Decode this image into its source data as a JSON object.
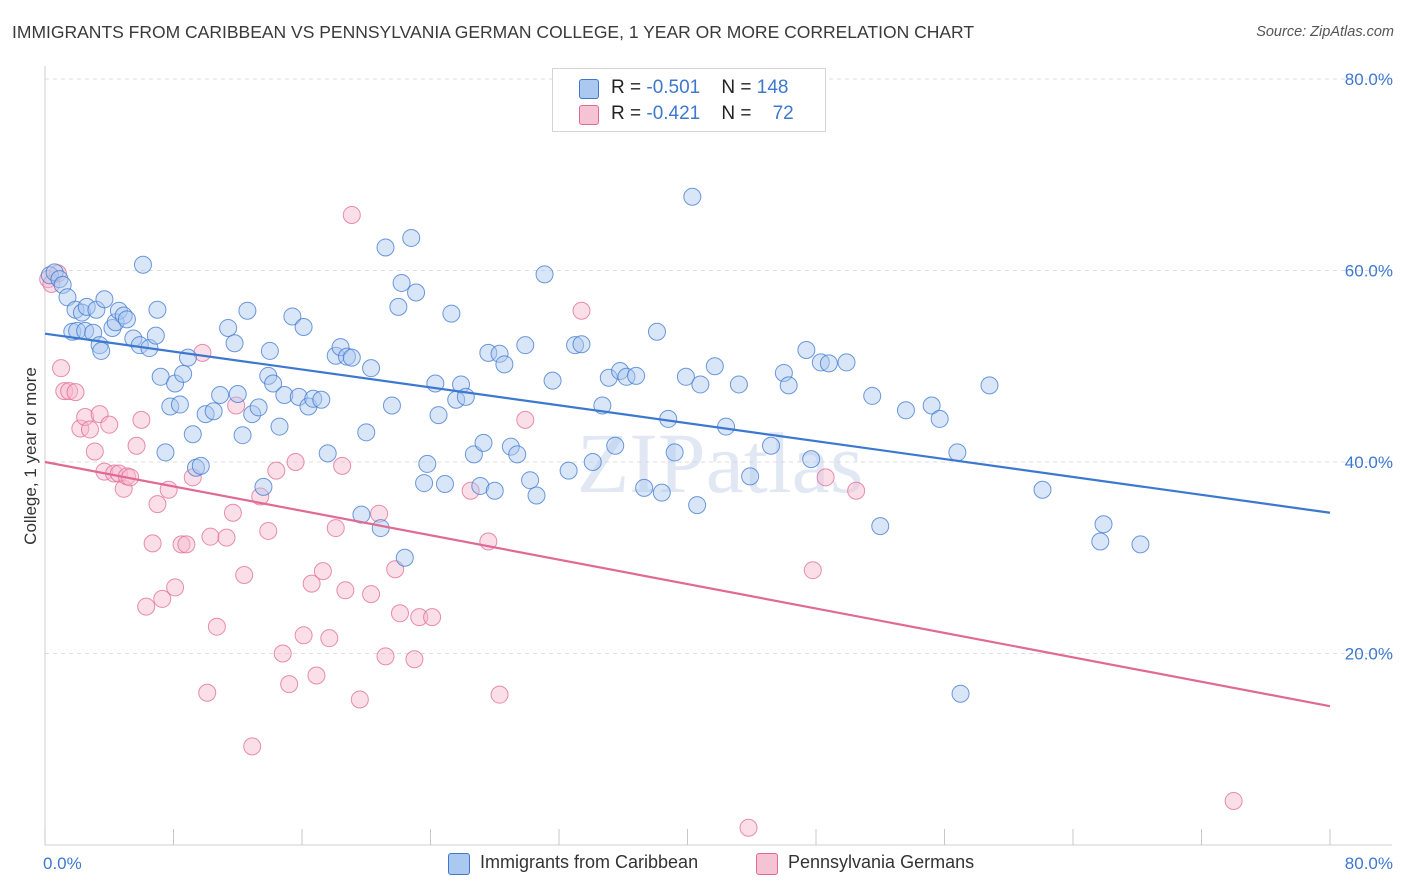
{
  "title": "IMMIGRANTS FROM CARIBBEAN VS PENNSYLVANIA GERMAN COLLEGE, 1 YEAR OR MORE CORRELATION CHART",
  "source": "Source: ZipAtlas.com",
  "watermark": "ZIPatlas",
  "colors": {
    "blue": "#3d78d0",
    "blue_fill": "#aac8f0",
    "pink": "#e06a94",
    "pink_fill": "#f6b8cc",
    "grid": "#dcdcdc",
    "axis_text": "#3d78d0"
  },
  "legend_top": [
    {
      "r_label": "R = ",
      "r_value": "-0.501",
      "n_label": "N = ",
      "n_value": "148"
    },
    {
      "r_label": "R = ",
      "r_value": "-0.421",
      "n_label": "N = ",
      "n_value": "72"
    }
  ],
  "chart_data": {
    "type": "scatter",
    "title": "IMMIGRANTS FROM CARIBBEAN VS PENNSYLVANIA GERMAN COLLEGE, 1 YEAR OR MORE CORRELATION CHART",
    "xlabel": "",
    "ylabel": "College, 1 year or more",
    "xlim": [
      0,
      80
    ],
    "ylim": [
      0,
      80
    ],
    "x_tick_labels": [
      "0.0%",
      "80.0%"
    ],
    "y_tick_labels": [
      "20.0%",
      "40.0%",
      "60.0%",
      "80.0%"
    ],
    "y_ticks": [
      20,
      40,
      60,
      80
    ],
    "grid": true,
    "legend_position": "bottom-center",
    "series": [
      {
        "name": "Immigrants from Caribbean",
        "color": "#3d78d0",
        "trend": {
          "x": [
            0,
            80
          ],
          "y": [
            53.4,
            34.7
          ]
        },
        "points": [
          [
            0.3,
            59.5
          ],
          [
            0.6,
            59.8
          ],
          [
            0.9,
            59.1
          ],
          [
            1.1,
            58.5
          ],
          [
            1.4,
            57.2
          ],
          [
            1.7,
            53.6
          ],
          [
            1.9,
            55.9
          ],
          [
            2.0,
            53.7
          ],
          [
            2.3,
            55.6
          ],
          [
            2.5,
            53.7
          ],
          [
            2.6,
            56.2
          ],
          [
            3.0,
            53.5
          ],
          [
            3.2,
            55.9
          ],
          [
            3.4,
            52.2
          ],
          [
            3.5,
            51.6
          ],
          [
            3.7,
            57.0
          ],
          [
            4.2,
            54.0
          ],
          [
            4.4,
            54.6
          ],
          [
            4.6,
            55.8
          ],
          [
            4.9,
            55.3
          ],
          [
            5.1,
            54.9
          ],
          [
            5.5,
            52.9
          ],
          [
            5.9,
            52.2
          ],
          [
            6.1,
            60.6
          ],
          [
            6.5,
            51.9
          ],
          [
            6.9,
            53.2
          ],
          [
            7.0,
            55.9
          ],
          [
            7.2,
            48.9
          ],
          [
            7.5,
            41.0
          ],
          [
            7.8,
            45.8
          ],
          [
            8.1,
            48.2
          ],
          [
            8.4,
            46.0
          ],
          [
            8.6,
            49.2
          ],
          [
            8.9,
            50.9
          ],
          [
            9.2,
            42.9
          ],
          [
            9.4,
            39.4
          ],
          [
            9.7,
            39.6
          ],
          [
            10.0,
            45.0
          ],
          [
            10.5,
            45.3
          ],
          [
            10.9,
            47.0
          ],
          [
            11.4,
            54.0
          ],
          [
            11.8,
            52.4
          ],
          [
            12.0,
            47.1
          ],
          [
            12.3,
            42.8
          ],
          [
            12.6,
            55.8
          ],
          [
            12.9,
            45.0
          ],
          [
            13.3,
            45.7
          ],
          [
            13.6,
            37.4
          ],
          [
            13.9,
            49.0
          ],
          [
            14.0,
            51.6
          ],
          [
            14.2,
            48.2
          ],
          [
            14.6,
            43.7
          ],
          [
            14.9,
            47.0
          ],
          [
            15.4,
            55.2
          ],
          [
            15.8,
            46.8
          ],
          [
            16.1,
            54.1
          ],
          [
            16.4,
            45.8
          ],
          [
            16.7,
            46.6
          ],
          [
            17.2,
            46.5
          ],
          [
            17.6,
            40.9
          ],
          [
            18.1,
            51.1
          ],
          [
            18.4,
            52.0
          ],
          [
            18.8,
            51.0
          ],
          [
            19.1,
            50.9
          ],
          [
            19.7,
            34.5
          ],
          [
            20.0,
            43.1
          ],
          [
            20.3,
            49.8
          ],
          [
            20.9,
            33.1
          ],
          [
            21.2,
            62.4
          ],
          [
            21.6,
            45.9
          ],
          [
            22.0,
            56.2
          ],
          [
            22.2,
            58.7
          ],
          [
            22.4,
            30.0
          ],
          [
            22.8,
            63.4
          ],
          [
            23.1,
            57.7
          ],
          [
            23.6,
            37.8
          ],
          [
            23.8,
            39.8
          ],
          [
            24.3,
            48.2
          ],
          [
            24.5,
            44.9
          ],
          [
            24.9,
            37.7
          ],
          [
            25.3,
            55.5
          ],
          [
            25.6,
            46.5
          ],
          [
            25.9,
            48.1
          ],
          [
            26.2,
            46.8
          ],
          [
            26.7,
            40.8
          ],
          [
            27.1,
            37.5
          ],
          [
            27.3,
            42.0
          ],
          [
            27.6,
            51.4
          ],
          [
            28.0,
            37.0
          ],
          [
            28.3,
            51.3
          ],
          [
            28.6,
            50.2
          ],
          [
            29.0,
            41.6
          ],
          [
            29.4,
            40.8
          ],
          [
            29.9,
            52.2
          ],
          [
            30.2,
            38.1
          ],
          [
            30.6,
            36.5
          ],
          [
            31.1,
            59.6
          ],
          [
            31.6,
            48.5
          ],
          [
            32.6,
            39.1
          ],
          [
            33.0,
            52.2
          ],
          [
            33.4,
            52.3
          ],
          [
            34.1,
            40.0
          ],
          [
            34.7,
            45.9
          ],
          [
            35.1,
            48.8
          ],
          [
            35.5,
            41.7
          ],
          [
            35.8,
            49.5
          ],
          [
            36.2,
            48.9
          ],
          [
            36.8,
            49.0
          ],
          [
            37.3,
            37.3
          ],
          [
            38.1,
            53.6
          ],
          [
            38.4,
            36.8
          ],
          [
            38.8,
            44.5
          ],
          [
            39.2,
            41.0
          ],
          [
            39.9,
            48.9
          ],
          [
            40.3,
            67.7
          ],
          [
            40.6,
            35.5
          ],
          [
            40.8,
            48.1
          ],
          [
            41.7,
            50.0
          ],
          [
            42.4,
            43.7
          ],
          [
            43.2,
            48.1
          ],
          [
            43.9,
            38.5
          ],
          [
            45.2,
            41.7
          ],
          [
            46.0,
            49.3
          ],
          [
            46.3,
            48.0
          ],
          [
            47.4,
            51.7
          ],
          [
            47.7,
            40.3
          ],
          [
            48.3,
            50.4
          ],
          [
            48.8,
            50.3
          ],
          [
            49.9,
            50.4
          ],
          [
            51.5,
            46.9
          ],
          [
            52.0,
            33.3
          ],
          [
            53.6,
            45.4
          ],
          [
            55.2,
            45.9
          ],
          [
            55.7,
            44.5
          ],
          [
            56.8,
            41.0
          ],
          [
            57.0,
            15.8
          ],
          [
            58.8,
            48.0
          ],
          [
            62.1,
            37.1
          ],
          [
            65.7,
            31.7
          ],
          [
            65.9,
            33.5
          ],
          [
            68.2,
            31.4
          ]
        ]
      },
      {
        "name": "Pennsylvania Germans",
        "color": "#e06a94",
        "trend": {
          "x": [
            0,
            80
          ],
          "y": [
            40.0,
            14.5
          ]
        },
        "points": [
          [
            0.2,
            59.1
          ],
          [
            0.4,
            58.6
          ],
          [
            0.8,
            59.7
          ],
          [
            1.0,
            49.8
          ],
          [
            1.2,
            47.4
          ],
          [
            1.5,
            47.4
          ],
          [
            1.9,
            47.3
          ],
          [
            2.2,
            43.5
          ],
          [
            2.5,
            44.7
          ],
          [
            2.8,
            43.4
          ],
          [
            3.1,
            41.1
          ],
          [
            3.4,
            45.0
          ],
          [
            3.7,
            39.0
          ],
          [
            4.0,
            43.9
          ],
          [
            4.3,
            38.8
          ],
          [
            4.6,
            38.8
          ],
          [
            4.9,
            37.2
          ],
          [
            5.1,
            38.5
          ],
          [
            5.3,
            38.4
          ],
          [
            5.7,
            41.7
          ],
          [
            6.0,
            44.4
          ],
          [
            6.3,
            24.9
          ],
          [
            6.7,
            31.5
          ],
          [
            7.0,
            35.6
          ],
          [
            7.3,
            25.7
          ],
          [
            7.7,
            37.1
          ],
          [
            8.1,
            26.9
          ],
          [
            8.5,
            31.4
          ],
          [
            8.8,
            31.4
          ],
          [
            9.2,
            38.4
          ],
          [
            9.8,
            51.4
          ],
          [
            10.1,
            15.9
          ],
          [
            10.3,
            32.2
          ],
          [
            10.7,
            22.8
          ],
          [
            11.3,
            32.1
          ],
          [
            11.7,
            34.7
          ],
          [
            11.9,
            45.9
          ],
          [
            12.4,
            28.2
          ],
          [
            12.9,
            10.3
          ],
          [
            13.4,
            36.4
          ],
          [
            13.9,
            32.8
          ],
          [
            14.4,
            39.1
          ],
          [
            14.8,
            20.0
          ],
          [
            15.2,
            16.8
          ],
          [
            15.6,
            40.0
          ],
          [
            16.1,
            21.9
          ],
          [
            16.6,
            27.3
          ],
          [
            16.9,
            17.7
          ],
          [
            17.3,
            28.6
          ],
          [
            17.7,
            21.6
          ],
          [
            18.1,
            33.1
          ],
          [
            18.5,
            39.6
          ],
          [
            18.7,
            26.6
          ],
          [
            19.1,
            65.8
          ],
          [
            19.6,
            15.2
          ],
          [
            20.3,
            26.2
          ],
          [
            20.8,
            34.6
          ],
          [
            21.2,
            19.7
          ],
          [
            21.8,
            28.8
          ],
          [
            22.1,
            24.2
          ],
          [
            23.0,
            19.4
          ],
          [
            23.3,
            23.8
          ],
          [
            24.1,
            23.8
          ],
          [
            26.5,
            37.0
          ],
          [
            27.6,
            31.7
          ],
          [
            28.3,
            15.7
          ],
          [
            29.9,
            44.4
          ],
          [
            33.4,
            55.8
          ],
          [
            43.8,
            1.8
          ],
          [
            47.8,
            28.7
          ],
          [
            48.6,
            38.4
          ],
          [
            50.5,
            37.0
          ],
          [
            74.0,
            4.6
          ]
        ]
      }
    ]
  },
  "legend_bottom": [
    "Immigrants from Caribbean",
    "Pennsylvania Germans"
  ]
}
